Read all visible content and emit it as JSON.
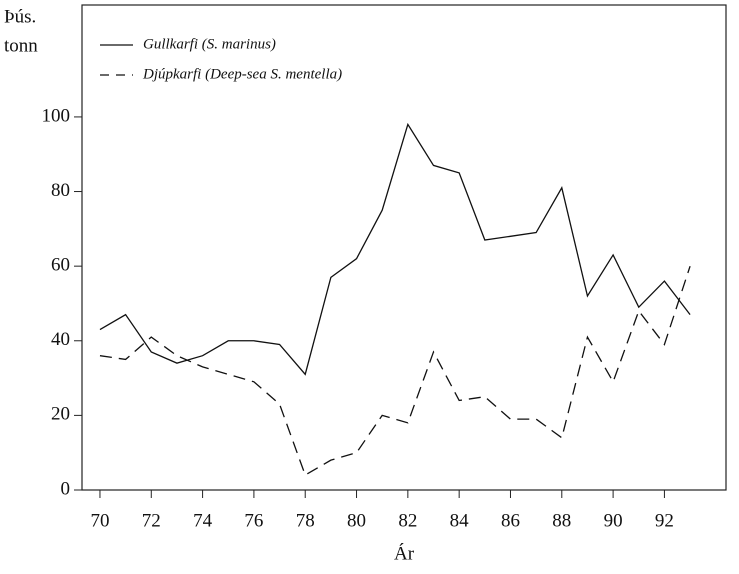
{
  "chart_data": {
    "type": "line",
    "ylabel": [
      "Þús.",
      "tonn"
    ],
    "xlabel": "Ár",
    "x": [
      70,
      71,
      72,
      73,
      74,
      75,
      76,
      77,
      78,
      79,
      80,
      81,
      82,
      83,
      84,
      85,
      86,
      87,
      88,
      89,
      90,
      91,
      92,
      93
    ],
    "series": [
      {
        "name": "Gullkarfi (S. marinus)",
        "color": "#111111",
        "dash": "solid",
        "values": [
          43,
          47,
          37,
          34,
          36,
          40,
          40,
          39,
          31,
          57,
          62,
          75,
          98,
          87,
          85,
          67,
          68,
          69,
          81,
          52,
          63,
          49,
          56,
          47
        ]
      },
      {
        "name": "Djúpkarfi (Deep-sea S. mentella)",
        "color": "#111111",
        "dash": "dashed",
        "values": [
          36,
          35,
          41,
          36,
          33,
          31,
          29,
          23,
          4,
          8,
          10,
          20,
          18,
          37,
          24,
          25,
          19,
          19,
          14,
          41,
          29,
          48,
          39,
          60
        ]
      }
    ],
    "xlim": [
      69.3,
      94.4
    ],
    "ylim": [
      0,
      130
    ],
    "xticks": [
      70,
      72,
      74,
      76,
      78,
      80,
      82,
      84,
      86,
      88,
      90,
      92
    ],
    "yticks": [
      0,
      20,
      40,
      60,
      80,
      100
    ],
    "legend": "upper left"
  }
}
